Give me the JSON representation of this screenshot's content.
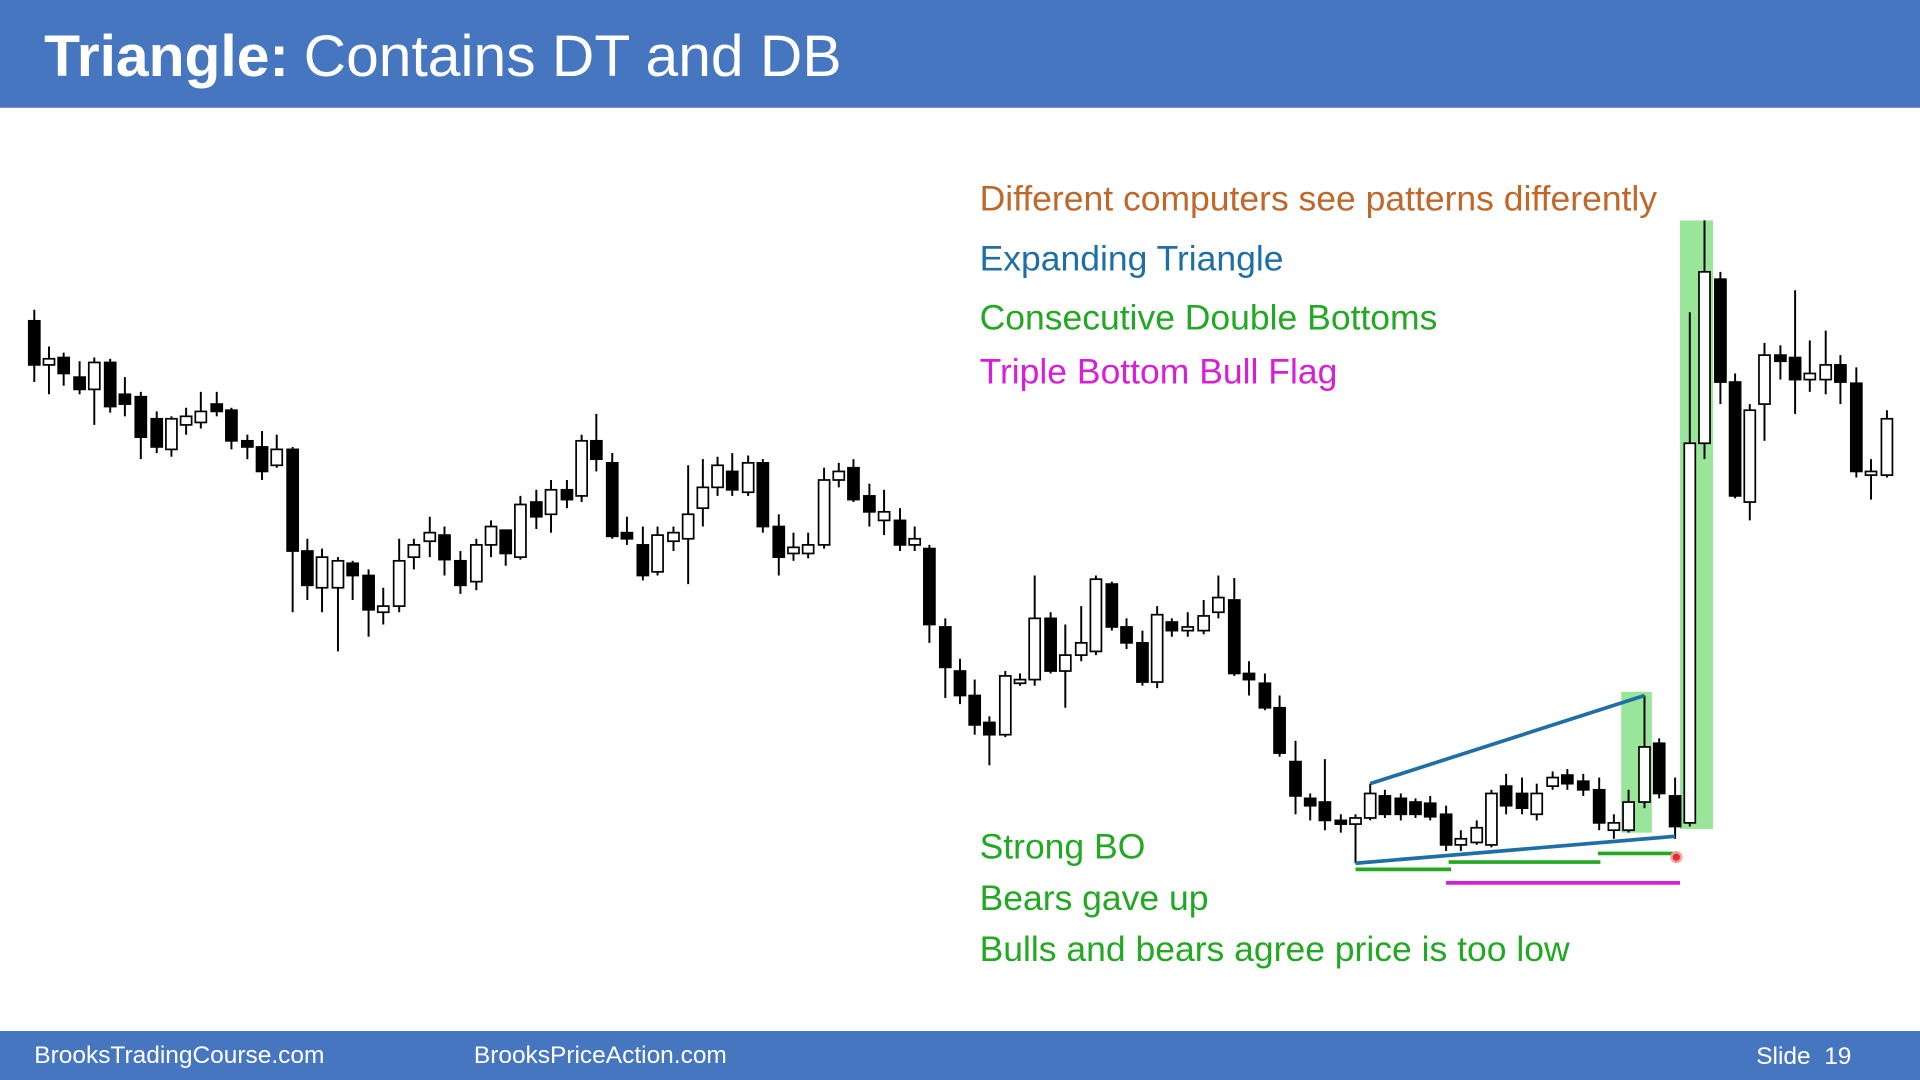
{
  "header": {
    "title_bold": "Triangle:",
    "title_rest": "Contains DT and DB"
  },
  "annotations": {
    "top": [
      "Different computers see patterns differently",
      "Expanding Triangle",
      "Consecutive Double Bottoms",
      "Triple Bottom Bull Flag"
    ],
    "bottom": [
      "Strong BO",
      "Bears gave up",
      "Bulls and bears agree price is too low"
    ]
  },
  "footer": {
    "left": "BrooksTradingCourse.com",
    "middle": "BrooksPriceAction.com",
    "slide": "Slide  19"
  }
}
